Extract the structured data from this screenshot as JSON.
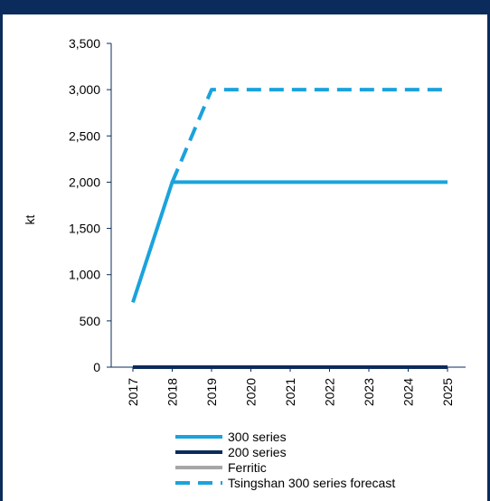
{
  "figure": {
    "title_fragment": "",
    "title_fragment_right": ""
  },
  "chart_data": {
    "type": "line",
    "title": "",
    "xlabel": "",
    "ylabel": "kt",
    "x": [
      "2017",
      "2018",
      "2019",
      "2020",
      "2021",
      "2022",
      "2023",
      "2024",
      "2025"
    ],
    "ylim": [
      0,
      3500
    ],
    "yticks": [
      0,
      500,
      1000,
      1500,
      2000,
      2500,
      3000,
      3500
    ],
    "ytick_labels": [
      "0",
      "500",
      "1,000",
      "1,500",
      "2,000",
      "2,500",
      "3,000",
      "3,500"
    ],
    "grid": false,
    "legend_position": "bottom",
    "series": [
      {
        "name": "300 series",
        "color": "#1aa3dc",
        "style": "solid",
        "values": [
          700,
          2000,
          2000,
          2000,
          2000,
          2000,
          2000,
          2000,
          2000
        ]
      },
      {
        "name": "200 series",
        "color": "#0a2b5c",
        "style": "solid",
        "values": [
          0,
          0,
          0,
          0,
          0,
          0,
          0,
          0,
          0
        ]
      },
      {
        "name": "Ferritic",
        "color": "#a6a6a6",
        "style": "solid",
        "values": [
          0,
          0,
          0,
          0,
          0,
          0,
          0,
          0,
          0
        ]
      },
      {
        "name": "Tsingshan 300 series forecast",
        "color": "#1aa3dc",
        "style": "dashed",
        "values": [
          null,
          2000,
          3000,
          3000,
          3000,
          3000,
          3000,
          3000,
          3000
        ]
      }
    ]
  }
}
